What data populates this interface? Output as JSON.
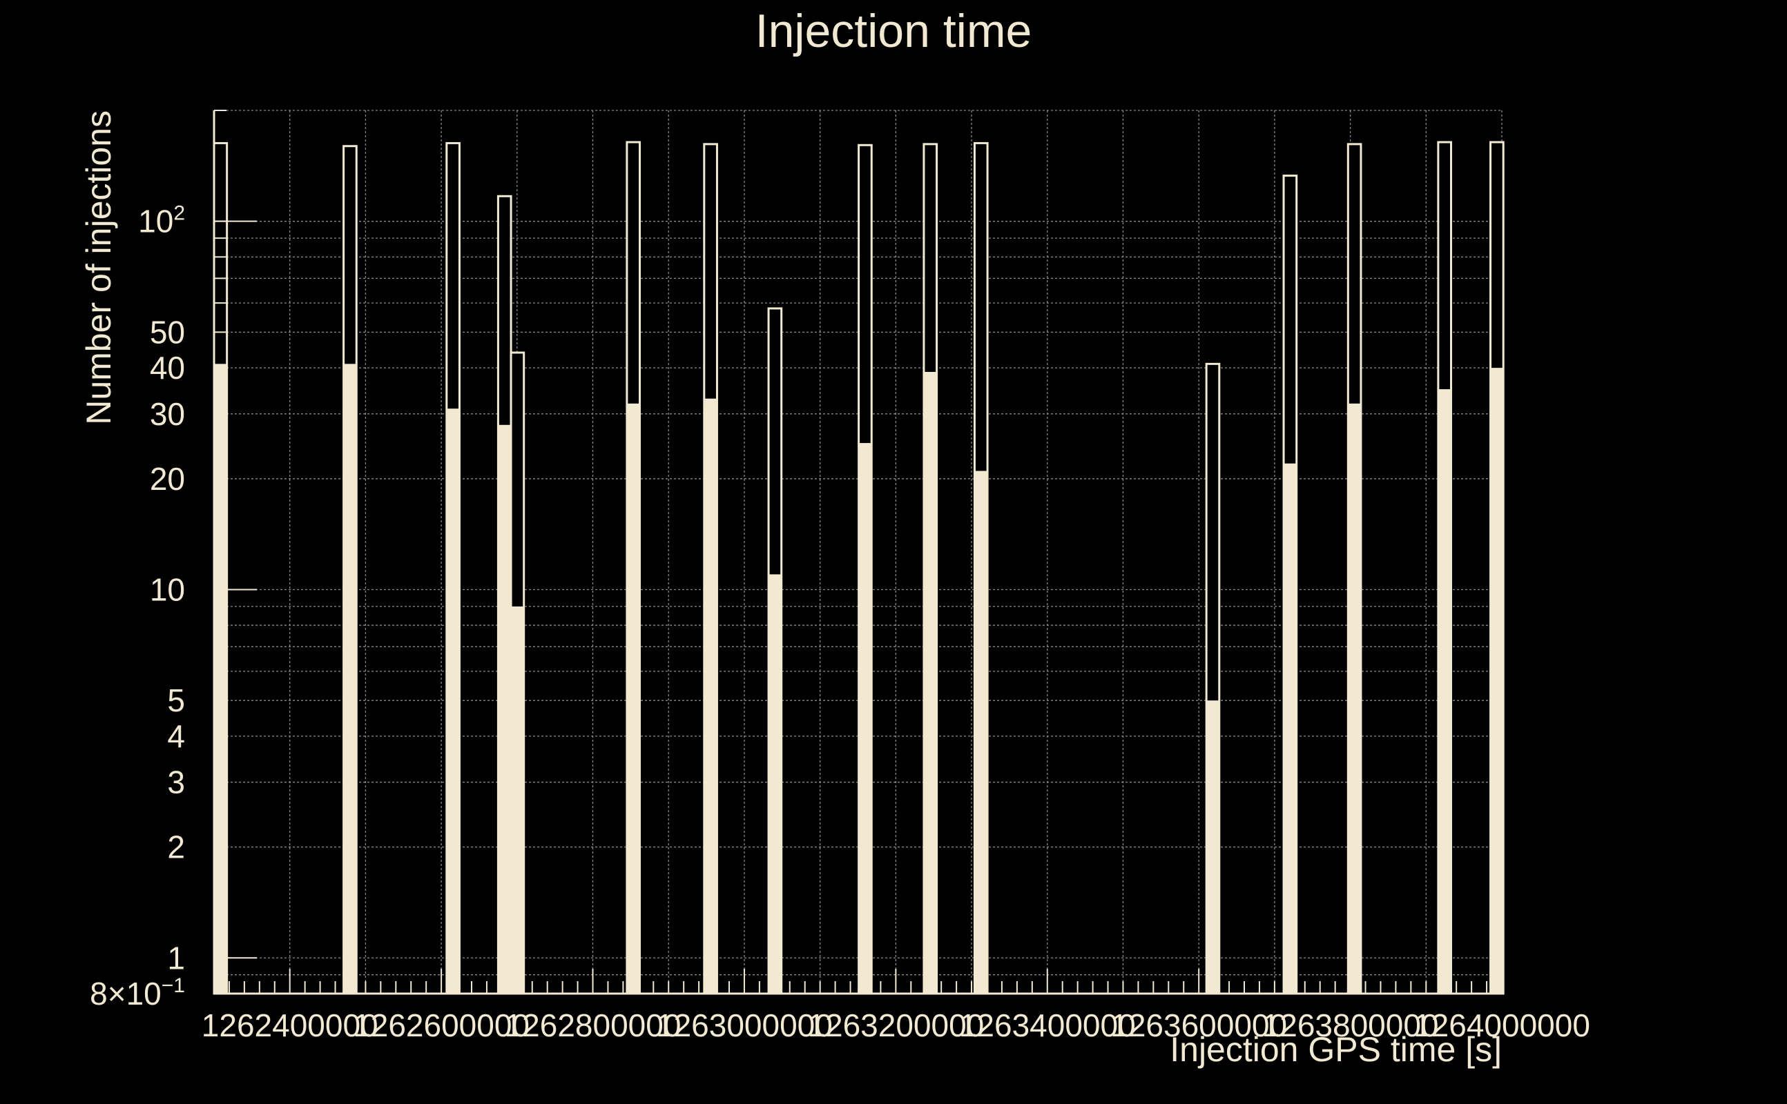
{
  "chart_data": {
    "type": "bar",
    "title": "Injection time",
    "xlabel": "Injection GPS time [s]",
    "ylabel": "Number of injections",
    "yscale": "log",
    "ylim": [
      0.8,
      200
    ],
    "xlim": [
      1262300000,
      1264000000
    ],
    "grid": true,
    "x_ticks": [
      {
        "value": 1262400000,
        "label": "1262400000"
      },
      {
        "value": 1262600000,
        "label": "1262600000"
      },
      {
        "value": 1262800000,
        "label": "1262800000"
      },
      {
        "value": 1263000000,
        "label": "1263000000"
      },
      {
        "value": 1263200000,
        "label": "1263200000"
      },
      {
        "value": 1263400000,
        "label": "1263400000"
      },
      {
        "value": 1263600000,
        "label": "1263600000"
      },
      {
        "value": 1263800000,
        "label": "1263800000"
      },
      {
        "value": 1264000000,
        "label": "1264000000"
      }
    ],
    "y_ticks": [
      {
        "value": 0.8,
        "label": "8×10",
        "sup": "−1"
      },
      {
        "value": 1,
        "label": "1"
      },
      {
        "value": 2,
        "label": "2"
      },
      {
        "value": 3,
        "label": "3"
      },
      {
        "value": 4,
        "label": "4"
      },
      {
        "value": 5,
        "label": "5"
      },
      {
        "value": 10,
        "label": "10"
      },
      {
        "value": 20,
        "label": "20"
      },
      {
        "value": 30,
        "label": "30"
      },
      {
        "value": 40,
        "label": "40"
      },
      {
        "value": 50,
        "label": "50"
      },
      {
        "value": 100,
        "label": "10",
        "sup": "2"
      }
    ],
    "bin_width": 17000,
    "series": [
      {
        "role": "total",
        "x": [
          1262300000,
          1262471000,
          1262607000,
          1262675000,
          1262692000,
          1262845000,
          1262947000,
          1263032000,
          1263151000,
          1263237000,
          1263304000,
          1263610000,
          1263712000,
          1263797000,
          1263916000,
          1263985000
        ],
        "values": [
          163,
          160,
          163,
          117,
          44,
          164,
          162,
          58,
          161,
          162,
          163,
          41,
          133,
          162,
          164,
          164
        ]
      },
      {
        "role": "found",
        "x": [
          1262300000,
          1262471000,
          1262607000,
          1262675000,
          1262692000,
          1262845000,
          1262947000,
          1263032000,
          1263151000,
          1263237000,
          1263304000,
          1263610000,
          1263712000,
          1263797000,
          1263916000,
          1263985000
        ],
        "values": [
          41,
          41,
          31,
          28,
          9,
          32,
          33,
          11,
          25,
          39,
          21,
          5,
          22,
          32,
          35,
          40
        ]
      }
    ]
  }
}
